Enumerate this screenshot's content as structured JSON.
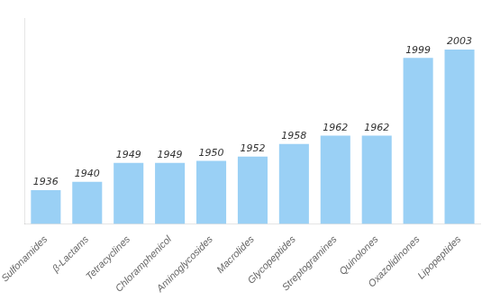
{
  "chart_data": {
    "type": "bar",
    "categories": [
      "Sulfonamides",
      "β-Lactams",
      "Tetracyclines",
      "Chloramphenicol",
      "Aminoglycosides",
      "Macrolides",
      "Glycopeptides",
      "Streptogramines",
      "Quinolones",
      "Oxazolidinones",
      "Lipopeptides"
    ],
    "values": [
      1936,
      1940,
      1949,
      1949,
      1950,
      1952,
      1958,
      1962,
      1962,
      1999,
      2003
    ],
    "ylim": [
      1920,
      2018
    ],
    "yticks": [],
    "grid": false,
    "data_labels": true,
    "tick_labels": "x"
  }
}
